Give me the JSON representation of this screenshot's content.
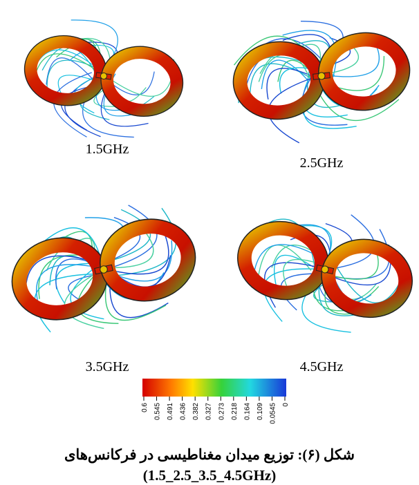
{
  "panels": [
    {
      "label": "1.5GHz"
    },
    {
      "label": "2.5GHz"
    },
    {
      "label": "3.5GHz"
    },
    {
      "label": "4.5GHz"
    }
  ],
  "colorbar": {
    "ticks": [
      "0.6",
      "0.545",
      "0.491",
      "0.436",
      "0.382",
      "0.327",
      "0.273",
      "0.218",
      "0.164",
      "0.109",
      "0.0545",
      "0"
    ]
  },
  "caption": {
    "line1": "شکل (۶): توزیع میدان مغناطیسی در فرکانس‌های",
    "line2": "(1.5_2.5_3.5_4.5GHz)"
  }
}
